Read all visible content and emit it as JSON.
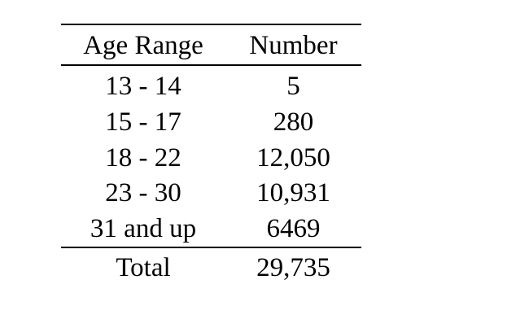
{
  "table": {
    "headers": [
      "Age Range",
      "Number"
    ],
    "rows": [
      {
        "age_range": "13 - 14",
        "number": "5"
      },
      {
        "age_range": "15 - 17",
        "number": "280"
      },
      {
        "age_range": "18 - 22",
        "number": "12,050"
      },
      {
        "age_range": "23 - 30",
        "number": "10,931"
      },
      {
        "age_range": "31 and up",
        "number": "6469"
      }
    ],
    "total": {
      "label": "Total",
      "number": "29,735"
    }
  }
}
